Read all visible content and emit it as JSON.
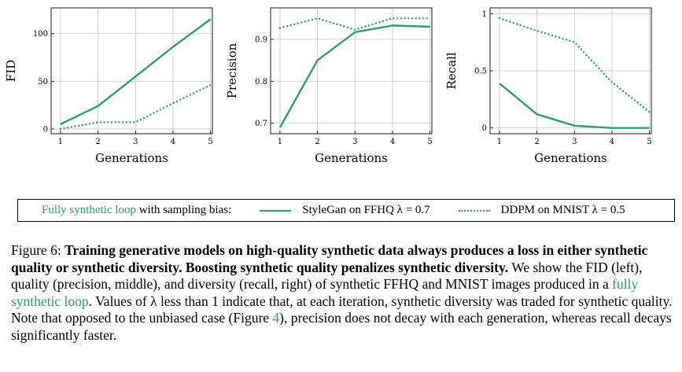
{
  "colors": {
    "series": "#2e9e6f",
    "grid": "#c8c8c8",
    "axis": "#000000"
  },
  "chart_data": [
    {
      "type": "line",
      "xlabel": "Generations",
      "ylabel": "FID",
      "x": [
        1,
        2,
        3,
        4,
        5
      ],
      "xticks": [
        "1",
        "2",
        "3",
        "4",
        "5"
      ],
      "yticks": [
        0,
        50,
        100
      ],
      "ytick_labels": [
        "0",
        "50",
        "100"
      ],
      "xlim": [
        0.75,
        5.05
      ],
      "ylim": [
        -5,
        127
      ],
      "grid": true,
      "series": [
        {
          "name": "StyleGan on FFHQ λ = 0.7",
          "style": "solid",
          "values": [
            5,
            24,
            55,
            86,
            115
          ]
        },
        {
          "name": "DDPM on MNIST λ = 0.5",
          "style": "dotted",
          "values": [
            0,
            7,
            7,
            27,
            46
          ]
        }
      ]
    },
    {
      "type": "line",
      "xlabel": "Generations",
      "ylabel": "Precision",
      "x": [
        1,
        2,
        3,
        4,
        5
      ],
      "xticks": [
        "1",
        "2",
        "3",
        "4",
        "5"
      ],
      "yticks": [
        0.7,
        0.8,
        0.9
      ],
      "ytick_labels": [
        "0.7",
        "0.8",
        "0.9"
      ],
      "xlim": [
        0.75,
        5.05
      ],
      "ylim": [
        0.675,
        0.975
      ],
      "grid": true,
      "series": [
        {
          "name": "StyleGan on FFHQ λ = 0.7",
          "style": "solid",
          "values": [
            0.69,
            0.85,
            0.917,
            0.933,
            0.93
          ]
        },
        {
          "name": "DDPM on MNIST λ = 0.5",
          "style": "dotted",
          "values": [
            0.927,
            0.95,
            0.923,
            0.95,
            0.95
          ]
        }
      ]
    },
    {
      "type": "line",
      "xlabel": "Generations",
      "ylabel": "Recall",
      "x": [
        1,
        2,
        3,
        4,
        5
      ],
      "xticks": [
        "1",
        "2",
        "3",
        "4",
        "5"
      ],
      "yticks": [
        0,
        0.5,
        1
      ],
      "ytick_labels": [
        "0",
        "0.5",
        "1"
      ],
      "xlim": [
        0.75,
        5.05
      ],
      "ylim": [
        -0.05,
        1.05
      ],
      "grid": true,
      "series": [
        {
          "name": "StyleGan on FFHQ λ = 0.7",
          "style": "solid",
          "values": [
            0.39,
            0.12,
            0.02,
            0.0,
            0.0
          ]
        },
        {
          "name": "DDPM on MNIST λ = 0.5",
          "style": "dotted",
          "values": [
            0.96,
            0.85,
            0.75,
            0.4,
            0.14
          ]
        }
      ]
    }
  ],
  "legend": {
    "title_highlight": "Fully synthetic loop",
    "title_rest": " with sampling bias:",
    "entries": [
      {
        "label": "StyleGan on FFHQ λ = 0.7",
        "style": "solid"
      },
      {
        "label": "DDPM on MNIST λ = 0.5",
        "style": "dotted"
      }
    ]
  },
  "caption": {
    "prefix": "Figure 6:  ",
    "bold": "Training generative models on high-quality synthetic data always produces a loss in either synthetic quality or synthetic diversity. Boosting synthetic quality penalizes synthetic diversity.",
    "text1": " We show the FID (left), quality (precision, middle), and diversity (recall, right) of synthetic FFHQ and MNIST images produced in a ",
    "link": "fully synthetic loop",
    "text2": ". Values of λ less than 1 indicate that, at each iteration, synthetic diversity was traded for synthetic quality. Note that opposed to the unbiased case (Figure ",
    "figref": "4",
    "text3": "), precision does not decay with each generation, whereas recall decays significantly faster."
  }
}
